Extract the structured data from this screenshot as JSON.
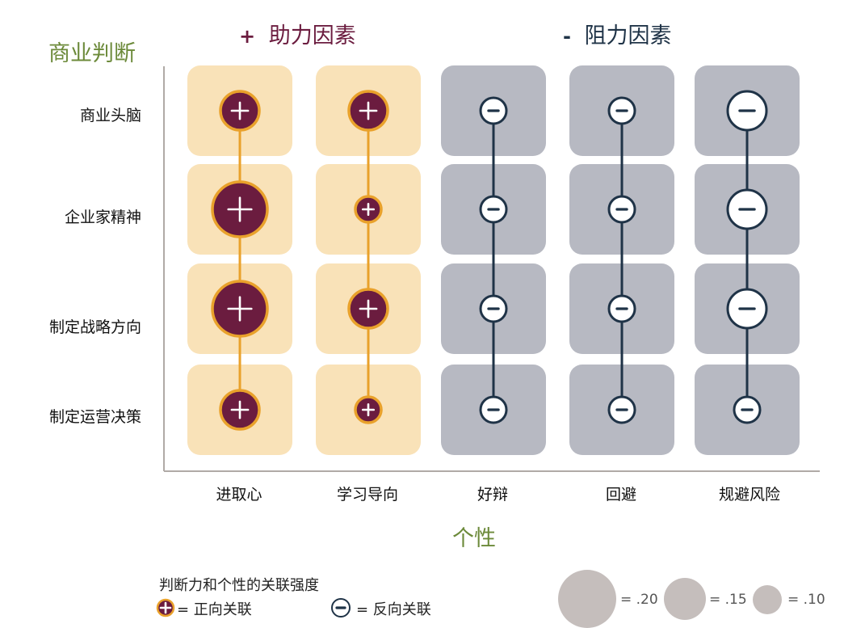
{
  "chart_data": {
    "type": "bubble-matrix",
    "ylabel": "商业判断",
    "xlabel": "个性",
    "groups": [
      {
        "name": "助力因素",
        "sign": "+",
        "color": "#6b1c3f",
        "tile_color": "#f9e2b8",
        "line_color": "#e9a12b"
      },
      {
        "name": "阻力因素",
        "sign": "-",
        "color": "#1f3347",
        "tile_color": "#b7b9c2",
        "line_color": "#1f3347"
      }
    ],
    "rows": [
      "商业头脑",
      "企业家精神",
      "制定战略方向",
      "制定运营决策"
    ],
    "columns": [
      {
        "name": "进取心",
        "group": 0,
        "values": [
          0.15,
          0.2,
          0.2,
          0.15
        ]
      },
      {
        "name": "学习导向",
        "group": 0,
        "values": [
          0.15,
          0.1,
          0.15,
          0.1
        ]
      },
      {
        "name": "好辩",
        "group": 1,
        "values": [
          -0.1,
          -0.1,
          -0.1,
          -0.1
        ]
      },
      {
        "name": "回避",
        "group": 1,
        "values": [
          -0.1,
          -0.1,
          -0.1,
          -0.1
        ]
      },
      {
        "name": "规避风险",
        "group": 1,
        "values": [
          -0.15,
          -0.15,
          -0.15,
          -0.1
        ]
      }
    ]
  },
  "legend": {
    "title": "判断力和个性的关联强度",
    "positive_label": "= 正向关联",
    "negative_label": "= 反向关联",
    "sizes": [
      {
        "value": 0.2,
        "label": "= .20"
      },
      {
        "value": 0.15,
        "label": "= .15"
      },
      {
        "value": 0.1,
        "label": "= .10"
      }
    ],
    "size_circle_color": "#c5bebc"
  }
}
